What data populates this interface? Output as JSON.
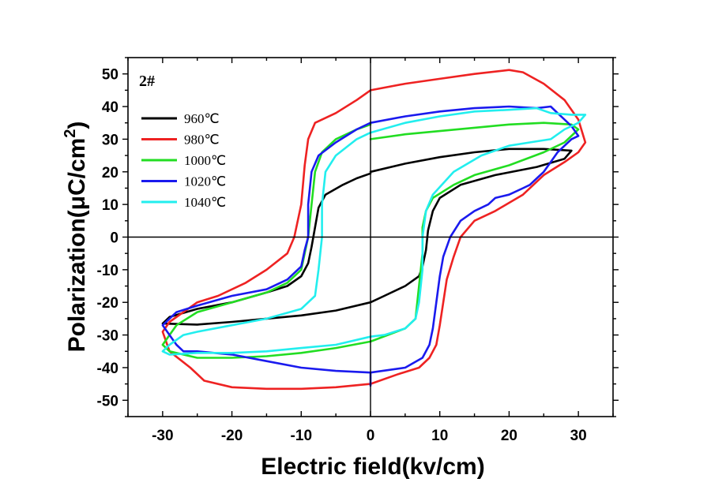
{
  "chart_data": {
    "type": "line",
    "title": "",
    "sample_tag": "2#",
    "xlabel": "Electric field(kv/cm)",
    "ylabel_prefix": "Polarization(μC/cm",
    "ylabel_sup": "2",
    "ylabel_suffix": ")",
    "xlim": [
      -35,
      35
    ],
    "ylim": [
      -55,
      55
    ],
    "x_ticks": [
      -30,
      -20,
      -10,
      0,
      10,
      20,
      30
    ],
    "y_ticks": [
      -50,
      -40,
      -30,
      -20,
      -10,
      0,
      10,
      20,
      30,
      40,
      50
    ],
    "legend_position": "top-left",
    "series": [
      {
        "name": "960℃",
        "color": "#000000",
        "points": [
          [
            0,
            20
          ],
          [
            5,
            22.5
          ],
          [
            10,
            24.5
          ],
          [
            15,
            26
          ],
          [
            20,
            27
          ],
          [
            25,
            27
          ],
          [
            29,
            26.5
          ],
          [
            28,
            24
          ],
          [
            24,
            21.5
          ],
          [
            18,
            19
          ],
          [
            13,
            16
          ],
          [
            10,
            12
          ],
          [
            9,
            8
          ],
          [
            8.3,
            2
          ],
          [
            8,
            -4
          ],
          [
            7.5,
            -9
          ],
          [
            7,
            -12
          ],
          [
            5,
            -15
          ],
          [
            2,
            -18
          ],
          [
            0,
            -20
          ],
          [
            -5,
            -22.5
          ],
          [
            -10,
            -24
          ],
          [
            -15,
            -25
          ],
          [
            -20,
            -26
          ],
          [
            -25,
            -26.8
          ],
          [
            -30,
            -26.5
          ],
          [
            -29,
            -24.5
          ],
          [
            -25,
            -22
          ],
          [
            -20,
            -20
          ],
          [
            -15,
            -17
          ],
          [
            -12,
            -15
          ],
          [
            -10,
            -12
          ],
          [
            -9,
            -8
          ],
          [
            -8.5,
            -3
          ],
          [
            -8,
            3
          ],
          [
            -7.5,
            9
          ],
          [
            -6.5,
            13
          ],
          [
            -4,
            16
          ],
          [
            -2,
            18
          ],
          [
            0,
            19.5
          ]
        ]
      },
      {
        "name": "980℃",
        "color": "#ee2222",
        "points": [
          [
            0,
            45
          ],
          [
            5,
            47
          ],
          [
            10,
            48.5
          ],
          [
            15,
            50
          ],
          [
            20,
            51.2
          ],
          [
            22,
            50.5
          ],
          [
            25,
            47
          ],
          [
            28,
            42
          ],
          [
            30,
            36
          ],
          [
            31,
            29
          ],
          [
            30,
            26
          ],
          [
            28,
            23
          ],
          [
            25,
            19
          ],
          [
            22,
            13
          ],
          [
            18,
            8
          ],
          [
            15,
            5
          ],
          [
            13,
            0
          ],
          [
            12,
            -6
          ],
          [
            11,
            -13
          ],
          [
            10.5,
            -20
          ],
          [
            10,
            -27
          ],
          [
            9.5,
            -33
          ],
          [
            8.5,
            -37
          ],
          [
            7,
            -40
          ],
          [
            4,
            -42
          ],
          [
            0,
            -45
          ],
          [
            -5,
            -46
          ],
          [
            -10,
            -46.5
          ],
          [
            -15,
            -46.5
          ],
          [
            -20,
            -46
          ],
          [
            -24,
            -44
          ],
          [
            -26,
            -40
          ],
          [
            -29,
            -35
          ],
          [
            -30,
            -29
          ],
          [
            -29,
            -26
          ],
          [
            -27,
            -23
          ],
          [
            -25,
            -20
          ],
          [
            -22,
            -18
          ],
          [
            -18,
            -14
          ],
          [
            -15,
            -10
          ],
          [
            -12,
            -5
          ],
          [
            -11,
            0
          ],
          [
            -10,
            10
          ],
          [
            -9.5,
            22
          ],
          [
            -9,
            30
          ],
          [
            -8,
            35
          ],
          [
            -5,
            38
          ],
          [
            -2,
            42
          ],
          [
            0,
            45
          ]
        ]
      },
      {
        "name": "1000℃",
        "color": "#22dd22",
        "points": [
          [
            0,
            30
          ],
          [
            5,
            31.5
          ],
          [
            10,
            32.5
          ],
          [
            15,
            33.5
          ],
          [
            20,
            34.5
          ],
          [
            25,
            35
          ],
          [
            29,
            34.5
          ],
          [
            30,
            33
          ],
          [
            28,
            29
          ],
          [
            25,
            26
          ],
          [
            20,
            22
          ],
          [
            15,
            19
          ],
          [
            12,
            16
          ],
          [
            9,
            12
          ],
          [
            8,
            8
          ],
          [
            7.5,
            3
          ],
          [
            7.5,
            -5
          ],
          [
            7,
            -15
          ],
          [
            6.5,
            -25
          ],
          [
            5,
            -28
          ],
          [
            0,
            -32
          ],
          [
            -5,
            -34
          ],
          [
            -10,
            -35.5
          ],
          [
            -15,
            -36.5
          ],
          [
            -20,
            -37
          ],
          [
            -25,
            -37
          ],
          [
            -29,
            -35
          ],
          [
            -30,
            -33
          ],
          [
            -29,
            -30
          ],
          [
            -28,
            -27
          ],
          [
            -25,
            -23
          ],
          [
            -20,
            -20
          ],
          [
            -15,
            -17
          ],
          [
            -12,
            -14
          ],
          [
            -10,
            -10
          ],
          [
            -9.5,
            -5
          ],
          [
            -9,
            0
          ],
          [
            -8.5,
            10
          ],
          [
            -8,
            20
          ],
          [
            -7,
            26
          ],
          [
            -5,
            30
          ],
          [
            -2,
            33
          ],
          [
            0,
            34.5
          ]
        ]
      },
      {
        "name": "1020℃",
        "color": "#1a1aee",
        "points": [
          [
            0,
            35
          ],
          [
            5,
            37
          ],
          [
            10,
            38.5
          ],
          [
            15,
            39.5
          ],
          [
            20,
            40
          ],
          [
            24,
            39.5
          ],
          [
            26,
            40
          ],
          [
            27,
            38
          ],
          [
            28,
            36
          ],
          [
            29,
            34
          ],
          [
            30,
            31
          ],
          [
            29,
            30
          ],
          [
            28,
            28
          ],
          [
            27,
            26
          ],
          [
            26,
            23
          ],
          [
            25,
            20
          ],
          [
            24,
            18
          ],
          [
            23,
            16
          ],
          [
            22,
            15
          ],
          [
            20,
            13
          ],
          [
            18,
            12
          ],
          [
            17,
            10
          ],
          [
            15,
            8
          ],
          [
            13,
            5
          ],
          [
            11.5,
            0
          ],
          [
            10.5,
            -6
          ],
          [
            10,
            -12
          ],
          [
            9.5,
            -20
          ],
          [
            9,
            -28
          ],
          [
            8.5,
            -33
          ],
          [
            7.5,
            -37
          ],
          [
            5,
            -40
          ],
          [
            0,
            -41.5
          ],
          [
            0,
            -45.5
          ],
          [
            0,
            -41.5
          ],
          [
            -5,
            -41
          ],
          [
            -10,
            -40
          ],
          [
            -15,
            -38
          ],
          [
            -20,
            -36
          ],
          [
            -25,
            -35
          ],
          [
            -27,
            -35
          ],
          [
            -28,
            -33
          ],
          [
            -29,
            -30
          ],
          [
            -30,
            -27
          ],
          [
            -29,
            -25
          ],
          [
            -28,
            -23
          ],
          [
            -25,
            -21
          ],
          [
            -20,
            -18
          ],
          [
            -15,
            -16
          ],
          [
            -12,
            -13
          ],
          [
            -10,
            -9
          ],
          [
            -9.5,
            -4
          ],
          [
            -9,
            0
          ],
          [
            -9,
            10
          ],
          [
            -8.5,
            20
          ],
          [
            -7.5,
            25
          ],
          [
            -5,
            29
          ],
          [
            -2,
            33
          ],
          [
            0,
            35
          ]
        ]
      },
      {
        "name": "1040℃",
        "color": "#22eeee",
        "points": [
          [
            0,
            32
          ],
          [
            5,
            35
          ],
          [
            10,
            37
          ],
          [
            15,
            38.5
          ],
          [
            20,
            39
          ],
          [
            24,
            39.5
          ],
          [
            26,
            38
          ],
          [
            29,
            37.5
          ],
          [
            31,
            37.5
          ],
          [
            30,
            35
          ],
          [
            28,
            33
          ],
          [
            26,
            30
          ],
          [
            23,
            29
          ],
          [
            20,
            28
          ],
          [
            16,
            25
          ],
          [
            12,
            20
          ],
          [
            9,
            13
          ],
          [
            8,
            8
          ],
          [
            7.5,
            0
          ],
          [
            7.5,
            -10
          ],
          [
            7,
            -20
          ],
          [
            6.5,
            -25
          ],
          [
            5,
            -28
          ],
          [
            2,
            -30
          ],
          [
            0,
            -30.5
          ],
          [
            -5,
            -33
          ],
          [
            -10,
            -34
          ],
          [
            -15,
            -35
          ],
          [
            -20,
            -35.5
          ],
          [
            -25,
            -35.5
          ],
          [
            -29,
            -36
          ],
          [
            -30,
            -35
          ],
          [
            -29,
            -33
          ],
          [
            -27,
            -30
          ],
          [
            -25,
            -29
          ],
          [
            -20,
            -27
          ],
          [
            -15,
            -25
          ],
          [
            -10,
            -22
          ],
          [
            -8,
            -18
          ],
          [
            -7.5,
            -10
          ],
          [
            -7,
            0
          ],
          [
            -7,
            10
          ],
          [
            -6.5,
            20
          ],
          [
            -5,
            25
          ],
          [
            -2,
            30
          ],
          [
            0,
            32
          ]
        ]
      }
    ]
  }
}
